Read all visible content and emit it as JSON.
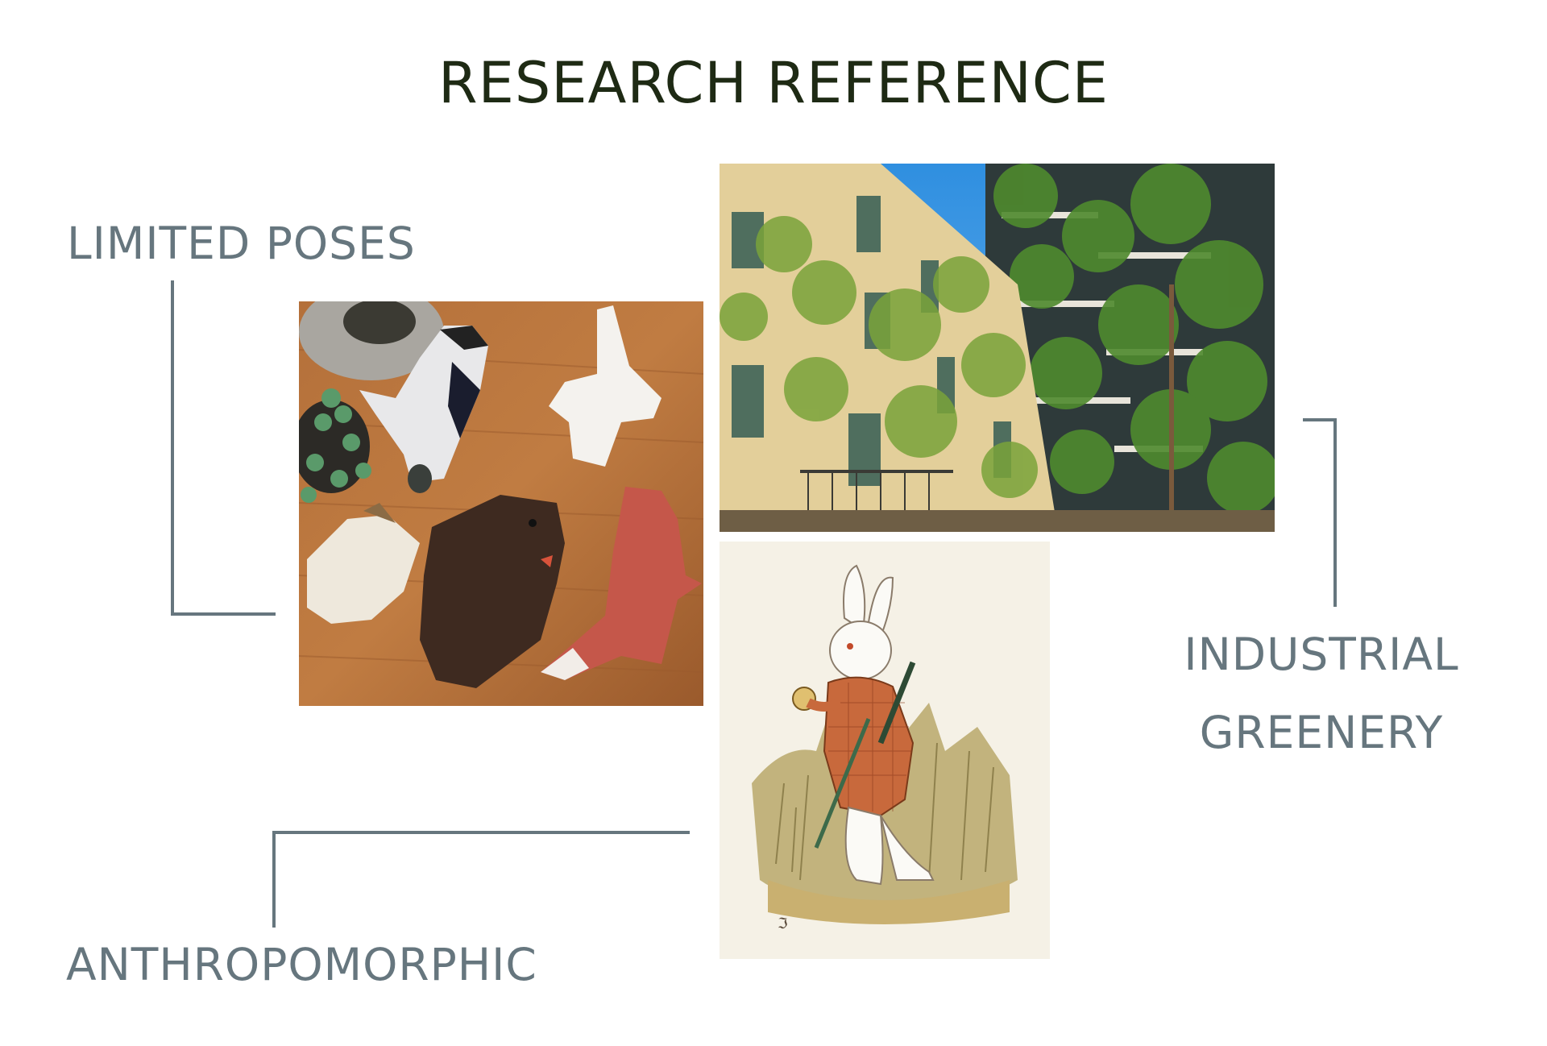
{
  "title": "RESEARCH REFERENCE",
  "labels": {
    "limited_poses": "LIMITED POSES",
    "industrial_line1": "INDUSTRIAL",
    "industrial_line2": "GREENERY",
    "anthropomorphic": "ANTHROPOMORPHIC"
  },
  "colors": {
    "title": "#1e2a14",
    "label": "#66767e"
  }
}
